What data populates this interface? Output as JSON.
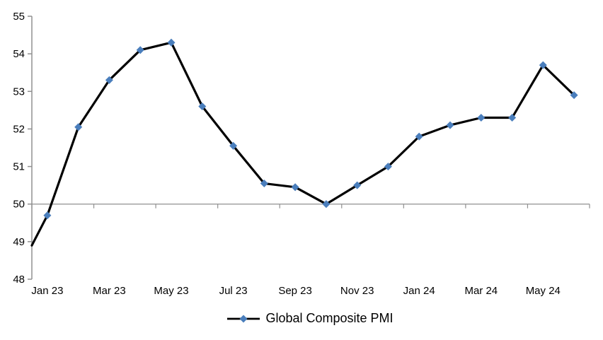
{
  "chart_data": {
    "type": "line",
    "title": "",
    "categories": [
      "Jan 23",
      "Feb 23",
      "Mar 23",
      "Apr 23",
      "May 23",
      "Jun 23",
      "Jul 23",
      "Aug 23",
      "Sep 23",
      "Oct 23",
      "Nov 23",
      "Dec 23",
      "Jan 24",
      "Feb 24",
      "Mar 24",
      "Apr 24",
      "May 24",
      "Jun 24"
    ],
    "series": [
      {
        "name": "Global Composite PMI",
        "values": [
          49.7,
          52.05,
          53.3,
          54.1,
          54.3,
          52.6,
          51.55,
          50.55,
          50.45,
          50.0,
          50.5,
          51.0,
          51.8,
          52.1,
          52.3,
          52.3,
          53.7,
          52.9
        ]
      }
    ],
    "edge_start_value": 48.9,
    "x_axis": {
      "label_every": 2,
      "tick_every": 2,
      "visible_labels": [
        "Jan 23",
        "Mar 23",
        "May 23",
        "Jul 23",
        "Sep 23",
        "Nov 23",
        "Jan 24",
        "Mar 24",
        "May 24"
      ]
    },
    "y_axis": {
      "min": 48,
      "max": 55,
      "ticks": [
        55,
        54,
        53,
        52,
        51,
        50,
        49,
        48
      ],
      "axis_crosses_at": 50
    },
    "legend": {
      "label": "Global Composite PMI",
      "position": "bottom-center"
    },
    "grid": "only axis line at 50",
    "colors": {
      "line": "#000000",
      "marker": "#4A7EBC",
      "axis": "#909090",
      "text": "#000000",
      "background": "#FFFFFF"
    }
  }
}
